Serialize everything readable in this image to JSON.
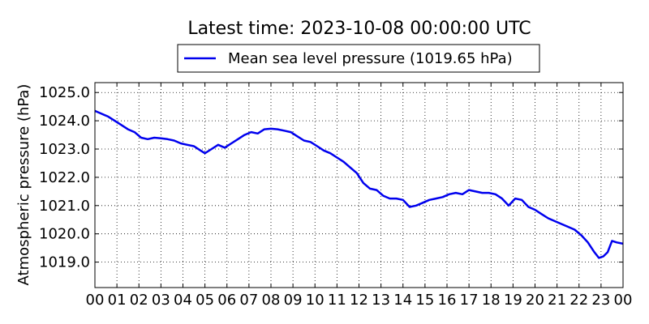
{
  "chart_data": {
    "type": "line",
    "title": "Latest time: 2023-10-08 00:00:00 UTC",
    "ylabel": "Atmospheric pressure (hPa)",
    "xlabel": "",
    "xlim": [
      0,
      24
    ],
    "ylim": [
      1018.1,
      1025.35
    ],
    "grid": true,
    "legend_position": "top-center",
    "series_color": "#0000ee",
    "x_tick_labels": [
      "00",
      "01",
      "02",
      "03",
      "04",
      "05",
      "06",
      "07",
      "08",
      "09",
      "10",
      "11",
      "12",
      "13",
      "14",
      "15",
      "16",
      "17",
      "18",
      "19",
      "20",
      "21",
      "22",
      "23",
      "00"
    ],
    "y_ticks": [
      1019,
      1020,
      1021,
      1022,
      1023,
      1024,
      1025
    ],
    "y_tick_labels": [
      "1019.0",
      "1020.0",
      "1021.0",
      "1022.0",
      "1023.0",
      "1024.0",
      "1025.0"
    ],
    "series": [
      {
        "name": "Mean sea level pressure (1019.65 hPa)",
        "x": [
          0,
          0.3,
          0.6,
          0.9,
          1.2,
          1.5,
          1.8,
          2.1,
          2.4,
          2.7,
          3.0,
          3.3,
          3.6,
          3.9,
          4.2,
          4.5,
          4.8,
          5.0,
          5.3,
          5.6,
          5.9,
          6.2,
          6.5,
          6.8,
          7.1,
          7.4,
          7.7,
          8.0,
          8.3,
          8.6,
          8.9,
          9.2,
          9.5,
          9.8,
          10.1,
          10.4,
          10.7,
          11.0,
          11.3,
          11.6,
          11.9,
          12.2,
          12.5,
          12.8,
          13.1,
          13.4,
          13.7,
          14.0,
          14.3,
          14.6,
          14.9,
          15.2,
          15.5,
          15.8,
          16.1,
          16.4,
          16.7,
          17.0,
          17.3,
          17.6,
          17.9,
          18.2,
          18.5,
          18.8,
          19.1,
          19.4,
          19.7,
          20.0,
          20.3,
          20.6,
          20.9,
          21.2,
          21.5,
          21.8,
          22.1,
          22.4,
          22.7,
          22.9,
          23.1,
          23.3,
          23.5,
          23.7,
          24.0
        ],
        "y": [
          1024.35,
          1024.25,
          1024.15,
          1024.0,
          1023.85,
          1023.7,
          1023.6,
          1023.4,
          1023.35,
          1023.4,
          1023.38,
          1023.35,
          1023.3,
          1023.2,
          1023.15,
          1023.1,
          1022.95,
          1022.85,
          1023.0,
          1023.15,
          1023.05,
          1023.2,
          1023.35,
          1023.5,
          1023.6,
          1023.55,
          1023.7,
          1023.72,
          1023.7,
          1023.65,
          1023.6,
          1023.45,
          1023.3,
          1023.25,
          1023.1,
          1022.95,
          1022.85,
          1022.7,
          1022.55,
          1022.35,
          1022.15,
          1021.8,
          1021.6,
          1021.55,
          1021.35,
          1021.25,
          1021.25,
          1021.2,
          1020.95,
          1021.0,
          1021.1,
          1021.2,
          1021.25,
          1021.3,
          1021.4,
          1021.45,
          1021.4,
          1021.55,
          1021.5,
          1021.45,
          1021.45,
          1021.4,
          1021.25,
          1021.0,
          1021.25,
          1021.2,
          1020.95,
          1020.85,
          1020.7,
          1020.55,
          1020.45,
          1020.35,
          1020.25,
          1020.15,
          1019.95,
          1019.7,
          1019.35,
          1019.15,
          1019.2,
          1019.35,
          1019.75,
          1019.7,
          1019.65
        ]
      }
    ]
  }
}
